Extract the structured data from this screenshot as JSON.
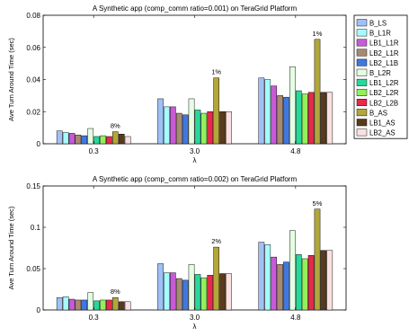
{
  "chart_data": [
    {
      "type": "bar",
      "title": "A Synthetic app (comp_comm ratio=0.001) on TeraGrid Platform",
      "xlabel": "λ",
      "ylabel": "Ave Turn Around Time (sec)",
      "ylim": [
        0,
        0.08
      ],
      "yticks": [
        "0",
        "0.02",
        "0.04",
        "0.06",
        "0.08"
      ],
      "categories": [
        "0.3",
        "3.0",
        "4.8"
      ],
      "legend_position": "right",
      "annotations": [
        {
          "category": "0.3",
          "text": "8%"
        },
        {
          "category": "3.0",
          "text": "1%"
        },
        {
          "category": "4.8",
          "text": "1%"
        }
      ],
      "series": [
        {
          "name": "B_LS",
          "color": "#9fc1f5",
          "values": [
            0.008,
            0.028,
            0.041
          ]
        },
        {
          "name": "B_L1R",
          "color": "#a6fbff",
          "values": [
            0.007,
            0.023,
            0.04
          ]
        },
        {
          "name": "LB1_L1R",
          "color": "#c85ad6",
          "values": [
            0.0065,
            0.023,
            0.036
          ]
        },
        {
          "name": "LB2_L1R",
          "color": "#a88a72",
          "values": [
            0.0055,
            0.019,
            0.03
          ]
        },
        {
          "name": "LB2_L1B",
          "color": "#4078e0",
          "values": [
            0.005,
            0.018,
            0.029
          ]
        },
        {
          "name": "B_L2R",
          "color": "#e5fde2",
          "values": [
            0.0095,
            0.028,
            0.048
          ]
        },
        {
          "name": "LB1_L2R",
          "color": "#28d89a",
          "values": [
            0.0045,
            0.021,
            0.033
          ]
        },
        {
          "name": "LB2_L2R",
          "color": "#94f05a",
          "values": [
            0.005,
            0.019,
            0.031
          ]
        },
        {
          "name": "LB2_L2B",
          "color": "#e52a4c",
          "values": [
            0.0045,
            0.02,
            0.032
          ]
        },
        {
          "name": "B_AS",
          "color": "#b3a63a",
          "values": [
            0.0075,
            0.041,
            0.065
          ]
        },
        {
          "name": "LB1_AS",
          "color": "#5a3a1c",
          "values": [
            0.006,
            0.02,
            0.032
          ]
        },
        {
          "name": "LB2_AS",
          "color": "#fbe0e0",
          "values": [
            0.0045,
            0.02,
            0.032
          ]
        }
      ]
    },
    {
      "type": "bar",
      "title": "A Synthetic app (comp_comm ratio=0.002) on TeraGrid Platform",
      "xlabel": "λ",
      "ylabel": "Ave Turn Around Time (sec)",
      "ylim": [
        0,
        0.15
      ],
      "yticks": [
        "0",
        "0.05",
        "0.1",
        "0.15"
      ],
      "categories": [
        "0.3",
        "3.0",
        "4.8"
      ],
      "annotations": [
        {
          "category": "0.3",
          "text": "8%"
        },
        {
          "category": "3.0",
          "text": "2%"
        },
        {
          "category": "4.8",
          "text": "5%"
        }
      ],
      "series": [
        {
          "name": "B_LS",
          "color": "#9fc1f5",
          "values": [
            0.015,
            0.056,
            0.082
          ]
        },
        {
          "name": "B_L1R",
          "color": "#a6fbff",
          "values": [
            0.016,
            0.045,
            0.079
          ]
        },
        {
          "name": "LB1_L1R",
          "color": "#c85ad6",
          "values": [
            0.013,
            0.045,
            0.064
          ]
        },
        {
          "name": "LB2_L1R",
          "color": "#a88a72",
          "values": [
            0.012,
            0.038,
            0.055
          ]
        },
        {
          "name": "LB2_L1B",
          "color": "#4078e0",
          "values": [
            0.012,
            0.036,
            0.058
          ]
        },
        {
          "name": "B_L2R",
          "color": "#e5fde2",
          "values": [
            0.021,
            0.055,
            0.096
          ]
        },
        {
          "name": "LB1_L2R",
          "color": "#28d89a",
          "values": [
            0.011,
            0.043,
            0.067
          ]
        },
        {
          "name": "LB2_L2R",
          "color": "#94f05a",
          "values": [
            0.012,
            0.039,
            0.062
          ]
        },
        {
          "name": "LB2_L2B",
          "color": "#e52a4c",
          "values": [
            0.012,
            0.042,
            0.066
          ]
        },
        {
          "name": "B_AS",
          "color": "#b3a63a",
          "values": [
            0.015,
            0.076,
            0.122
          ]
        },
        {
          "name": "LB1_AS",
          "color": "#5a3a1c",
          "values": [
            0.01,
            0.044,
            0.072
          ]
        },
        {
          "name": "LB2_AS",
          "color": "#fbe0e0",
          "values": [
            0.01,
            0.044,
            0.072
          ]
        }
      ]
    }
  ]
}
